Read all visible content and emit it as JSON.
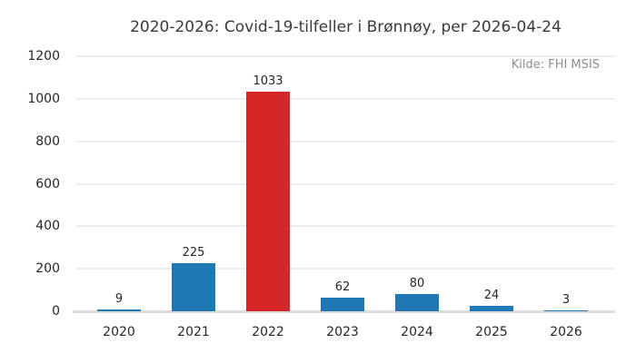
{
  "chart": {
    "title": "2020-2026: Covid-19-tilfeller i Brønnøy, per 2026-04-24",
    "source": "Kilde: FHI MSIS"
  },
  "chart_data": {
    "type": "bar",
    "title": "2020-2026: Covid-19-tilfeller i Brønnøy, per 2026-04-24",
    "source": "Kilde: FHI MSIS",
    "categories": [
      "2020",
      "2021",
      "2022",
      "2023",
      "2024",
      "2025",
      "2026"
    ],
    "values": [
      9,
      225,
      1033,
      62,
      80,
      24,
      3
    ],
    "bar_colors": [
      "#1f77b4",
      "#1f77b4",
      "#d62728",
      "#1f77b4",
      "#1f77b4",
      "#1f77b4",
      "#1f77b4"
    ],
    "highlighted_category": "2022",
    "xlabel": "",
    "ylabel": "",
    "ylim": [
      0,
      1200
    ],
    "yticks": [
      0,
      200,
      400,
      600,
      800,
      1000,
      1200
    ],
    "grid": true,
    "legend": false,
    "value_labels_shown": true
  },
  "colors": {
    "bar_default": "#1f77b4",
    "bar_highlight": "#d62728",
    "grid": "#ececec",
    "axis_line": "#dcdcdc",
    "title_text": "#3a3a3a",
    "tick_text": "#262626",
    "source_text": "#8f8f8f",
    "background": "#ffffff"
  }
}
